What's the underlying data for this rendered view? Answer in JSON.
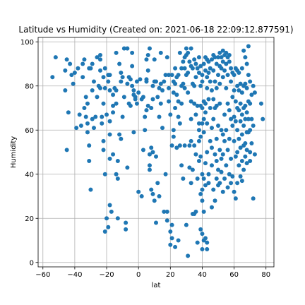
{
  "chart_data": {
    "type": "scatter",
    "title": "Latitude vs Humidity (Created on: 2021-06-18 22:09:12.877591)",
    "xlabel": "lat",
    "ylabel": "Humidity",
    "xlim": [
      -63,
      85
    ],
    "ylim": [
      -2,
      102
    ],
    "xticks": [
      -60,
      -40,
      -20,
      0,
      20,
      40,
      60,
      80
    ],
    "yticks": [
      0,
      20,
      40,
      60,
      80,
      100
    ],
    "grid": true,
    "marker_color": "#1f77b4",
    "points": [
      [
        -54,
        84
      ],
      [
        -52,
        93
      ],
      [
        -46,
        78
      ],
      [
        -46,
        87
      ],
      [
        -45,
        51
      ],
      [
        -45,
        92
      ],
      [
        -44,
        68
      ],
      [
        -43,
        90
      ],
      [
        -42,
        85
      ],
      [
        -41,
        81
      ],
      [
        -40,
        86
      ],
      [
        -39,
        61
      ],
      [
        -38,
        88
      ],
      [
        -37,
        67
      ],
      [
        -36,
        62
      ],
      [
        -35,
        84
      ],
      [
        -35,
        90
      ],
      [
        -34,
        70
      ],
      [
        -34,
        92
      ],
      [
        -33,
        75
      ],
      [
        -33,
        66
      ],
      [
        -32,
        72
      ],
      [
        -32,
        59
      ],
      [
        -32,
        63
      ],
      [
        -31,
        88
      ],
      [
        -31,
        53
      ],
      [
        -31,
        46
      ],
      [
        -30,
        33
      ],
      [
        -30,
        88
      ],
      [
        -29,
        90
      ],
      [
        -29,
        78
      ],
      [
        -29,
        65
      ],
      [
        -28,
        82
      ],
      [
        -28,
        61
      ],
      [
        -27,
        66
      ],
      [
        -26,
        93
      ],
      [
        -26,
        75
      ],
      [
        -25,
        80
      ],
      [
        -24,
        94
      ],
      [
        -24,
        92
      ],
      [
        -24,
        87
      ],
      [
        -24,
        79
      ],
      [
        -23,
        63
      ],
      [
        -23,
        66
      ],
      [
        -22,
        84
      ],
      [
        -22,
        72
      ],
      [
        -22,
        55
      ],
      [
        -22,
        51
      ],
      [
        -21,
        79
      ],
      [
        -21,
        88
      ],
      [
        -21,
        40
      ],
      [
        -21,
        14
      ],
      [
        -20,
        67
      ],
      [
        -20,
        20
      ],
      [
        -19,
        85
      ],
      [
        -19,
        82
      ],
      [
        -19,
        16
      ],
      [
        -18,
        85
      ],
      [
        -18,
        78
      ],
      [
        -18,
        64
      ],
      [
        -18,
        58
      ],
      [
        -18,
        47
      ],
      [
        -18,
        26
      ],
      [
        -17,
        23
      ],
      [
        -16,
        76
      ],
      [
        -16,
        71
      ],
      [
        -16,
        68
      ],
      [
        -16,
        49
      ],
      [
        -15,
        79
      ],
      [
        -14,
        95
      ],
      [
        -14,
        78
      ],
      [
        -14,
        72
      ],
      [
        -14,
        40
      ],
      [
        -13,
        46
      ],
      [
        -13,
        38
      ],
      [
        -13,
        20
      ],
      [
        -12,
        90
      ],
      [
        -12,
        58
      ],
      [
        -11,
        86
      ],
      [
        -11,
        82
      ],
      [
        -11,
        56
      ],
      [
        -10,
        84
      ],
      [
        -10,
        66
      ],
      [
        -9,
        97
      ],
      [
        -9,
        75
      ],
      [
        -8,
        18
      ],
      [
        -8,
        15
      ],
      [
        -7,
        97
      ],
      [
        -7,
        43
      ],
      [
        -7,
        81
      ],
      [
        -6,
        84
      ],
      [
        -6,
        72
      ],
      [
        -5,
        83
      ],
      [
        -5,
        71
      ],
      [
        -4,
        95
      ],
      [
        -4,
        89
      ],
      [
        -4,
        80
      ],
      [
        -3,
        78
      ],
      [
        -3,
        76
      ],
      [
        -3,
        59
      ],
      [
        -2,
        75
      ],
      [
        -2,
        74
      ],
      [
        -1,
        82
      ],
      [
        -1,
        72
      ],
      [
        0,
        32
      ],
      [
        0,
        77
      ],
      [
        1,
        83
      ],
      [
        2,
        30
      ],
      [
        2,
        74
      ],
      [
        3,
        75
      ],
      [
        3,
        51
      ],
      [
        4,
        60
      ],
      [
        4,
        66
      ],
      [
        5,
        82
      ],
      [
        5,
        83
      ],
      [
        5,
        69
      ],
      [
        5,
        92
      ],
      [
        6,
        94
      ],
      [
        6,
        87
      ],
      [
        6,
        71
      ],
      [
        7,
        97
      ],
      [
        7,
        49
      ],
      [
        7,
        44
      ],
      [
        7,
        42
      ],
      [
        8,
        33
      ],
      [
        8,
        70
      ],
      [
        8,
        52
      ],
      [
        9,
        80
      ],
      [
        9,
        74
      ],
      [
        9,
        50
      ],
      [
        9,
        31
      ],
      [
        10,
        92
      ],
      [
        10,
        82
      ],
      [
        10,
        28
      ],
      [
        11,
        82
      ],
      [
        11,
        48
      ],
      [
        11,
        18
      ],
      [
        12,
        75
      ],
      [
        12,
        36
      ],
      [
        13,
        79
      ],
      [
        13,
        66
      ],
      [
        13,
        30
      ],
      [
        14,
        95
      ],
      [
        14,
        81
      ],
      [
        14,
        72
      ],
      [
        15,
        78
      ],
      [
        15,
        61
      ],
      [
        16,
        82
      ],
      [
        16,
        23
      ],
      [
        17,
        85
      ],
      [
        17,
        40
      ],
      [
        18,
        23
      ],
      [
        18,
        19
      ],
      [
        18,
        93
      ],
      [
        19,
        85
      ],
      [
        19,
        73
      ],
      [
        19,
        79
      ],
      [
        20,
        67
      ],
      [
        20,
        14
      ],
      [
        20,
        8
      ],
      [
        21,
        85
      ],
      [
        21,
        53
      ],
      [
        21,
        17
      ],
      [
        21,
        11
      ],
      [
        22,
        82
      ],
      [
        22,
        77
      ],
      [
        22,
        60
      ],
      [
        22,
        57
      ],
      [
        23,
        88
      ],
      [
        23,
        81
      ],
      [
        23,
        70
      ],
      [
        23,
        7
      ],
      [
        24,
        76
      ],
      [
        24,
        84
      ],
      [
        24,
        52
      ],
      [
        25,
        85
      ],
      [
        25,
        73
      ],
      [
        25,
        66
      ],
      [
        25,
        10
      ],
      [
        26,
        95
      ],
      [
        26,
        63
      ],
      [
        26,
        53
      ],
      [
        27,
        88
      ],
      [
        27,
        80
      ],
      [
        27,
        72
      ],
      [
        27,
        44
      ],
      [
        28,
        91
      ],
      [
        28,
        81
      ],
      [
        28,
        38
      ],
      [
        29,
        93
      ],
      [
        29,
        88
      ],
      [
        29,
        79
      ],
      [
        29,
        53
      ],
      [
        30,
        97
      ],
      [
        30,
        94
      ],
      [
        30,
        85
      ],
      [
        30,
        17
      ],
      [
        31,
        95
      ],
      [
        31,
        86
      ],
      [
        31,
        77
      ],
      [
        31,
        3
      ],
      [
        32,
        91
      ],
      [
        32,
        53
      ],
      [
        32,
        43
      ],
      [
        33,
        97
      ],
      [
        33,
        89
      ],
      [
        33,
        73
      ],
      [
        33,
        65
      ],
      [
        33,
        55
      ],
      [
        33,
        36
      ],
      [
        34,
        88
      ],
      [
        34,
        81
      ],
      [
        34,
        42
      ],
      [
        34,
        22
      ],
      [
        35,
        92
      ],
      [
        35,
        80
      ],
      [
        35,
        72
      ],
      [
        35,
        53
      ],
      [
        35,
        22
      ],
      [
        36,
        90
      ],
      [
        36,
        84
      ],
      [
        36,
        67
      ],
      [
        36,
        49
      ],
      [
        36,
        23
      ],
      [
        37,
        88
      ],
      [
        37,
        71
      ],
      [
        37,
        38
      ],
      [
        37,
        9
      ],
      [
        38,
        93
      ],
      [
        38,
        86
      ],
      [
        38,
        60
      ],
      [
        38,
        63
      ],
      [
        38,
        55
      ],
      [
        38,
        46
      ],
      [
        39,
        89
      ],
      [
        39,
        80
      ],
      [
        39,
        71
      ],
      [
        39,
        57
      ],
      [
        39,
        48
      ],
      [
        39,
        31
      ],
      [
        39,
        15
      ],
      [
        40,
        85
      ],
      [
        40,
        82
      ],
      [
        40,
        70
      ],
      [
        40,
        63
      ],
      [
        40,
        40
      ],
      [
        40,
        33
      ],
      [
        40,
        28
      ],
      [
        40,
        13
      ],
      [
        40,
        6
      ],
      [
        41,
        90
      ],
      [
        41,
        73
      ],
      [
        41,
        65
      ],
      [
        41,
        59
      ],
      [
        41,
        38
      ],
      [
        41,
        23
      ],
      [
        41,
        10
      ],
      [
        42,
        93
      ],
      [
        42,
        87
      ],
      [
        42,
        72
      ],
      [
        42,
        68
      ],
      [
        42,
        45
      ],
      [
        42,
        35
      ],
      [
        42,
        11
      ],
      [
        43,
        92
      ],
      [
        43,
        84
      ],
      [
        43,
        79
      ],
      [
        43,
        63
      ],
      [
        43,
        50
      ],
      [
        43,
        9
      ],
      [
        43,
        6
      ],
      [
        44,
        91
      ],
      [
        44,
        86
      ],
      [
        44,
        74
      ],
      [
        44,
        40
      ],
      [
        44,
        36
      ],
      [
        45,
        88
      ],
      [
        45,
        82
      ],
      [
        45,
        70
      ],
      [
        45,
        55
      ],
      [
        46,
        92
      ],
      [
        46,
        78
      ],
      [
        46,
        61
      ],
      [
        46,
        52
      ],
      [
        46,
        44
      ],
      [
        46,
        25
      ],
      [
        47,
        94
      ],
      [
        47,
        87
      ],
      [
        47,
        74
      ],
      [
        47,
        65
      ],
      [
        47,
        33
      ],
      [
        48,
        93
      ],
      [
        48,
        82
      ],
      [
        48,
        70
      ],
      [
        48,
        49
      ],
      [
        48,
        28
      ],
      [
        49,
        90
      ],
      [
        49,
        79
      ],
      [
        49,
        71
      ],
      [
        49,
        56
      ],
      [
        49,
        46
      ],
      [
        49,
        38
      ],
      [
        50,
        93
      ],
      [
        50,
        85
      ],
      [
        50,
        62
      ],
      [
        50,
        42
      ],
      [
        50,
        35
      ],
      [
        51,
        95
      ],
      [
        51,
        89
      ],
      [
        51,
        81
      ],
      [
        51,
        72
      ],
      [
        51,
        51
      ],
      [
        51,
        36
      ],
      [
        52,
        93
      ],
      [
        52,
        88
      ],
      [
        52,
        60
      ],
      [
        52,
        47
      ],
      [
        52,
        41
      ],
      [
        53,
        96
      ],
      [
        53,
        91
      ],
      [
        53,
        84
      ],
      [
        53,
        58
      ],
      [
        53,
        49
      ],
      [
        53,
        32
      ],
      [
        54,
        94
      ],
      [
        54,
        87
      ],
      [
        54,
        67
      ],
      [
        54,
        55
      ],
      [
        54,
        38
      ],
      [
        55,
        95
      ],
      [
        55,
        90
      ],
      [
        55,
        79
      ],
      [
        55,
        60
      ],
      [
        55,
        44
      ],
      [
        56,
        93
      ],
      [
        56,
        85
      ],
      [
        56,
        72
      ],
      [
        56,
        51
      ],
      [
        56,
        34
      ],
      [
        57,
        94
      ],
      [
        57,
        91
      ],
      [
        57,
        69
      ],
      [
        57,
        56
      ],
      [
        57,
        40
      ],
      [
        58,
        88
      ],
      [
        58,
        82
      ],
      [
        58,
        65
      ],
      [
        58,
        47
      ],
      [
        58,
        36
      ],
      [
        59,
        86
      ],
      [
        59,
        75
      ],
      [
        59,
        62
      ],
      [
        59,
        39
      ],
      [
        60,
        85
      ],
      [
        60,
        78
      ],
      [
        60,
        66
      ],
      [
        60,
        55
      ],
      [
        60,
        32
      ],
      [
        61,
        88
      ],
      [
        61,
        73
      ],
      [
        61,
        64
      ],
      [
        61,
        48
      ],
      [
        61,
        29
      ],
      [
        62,
        87
      ],
      [
        62,
        80
      ],
      [
        62,
        70
      ],
      [
        62,
        60
      ],
      [
        62,
        50
      ],
      [
        62,
        36
      ],
      [
        63,
        86
      ],
      [
        63,
        78
      ],
      [
        63,
        69
      ],
      [
        63,
        56
      ],
      [
        63,
        44
      ],
      [
        64,
        81
      ],
      [
        64,
        72
      ],
      [
        64,
        64
      ],
      [
        64,
        52
      ],
      [
        64,
        39
      ],
      [
        65,
        88
      ],
      [
        65,
        77
      ],
      [
        65,
        67
      ],
      [
        65,
        58
      ],
      [
        65,
        46
      ],
      [
        65,
        37
      ],
      [
        66,
        96
      ],
      [
        66,
        80
      ],
      [
        66,
        70
      ],
      [
        66,
        62
      ],
      [
        66,
        53
      ],
      [
        66,
        42
      ],
      [
        67,
        93
      ],
      [
        67,
        81
      ],
      [
        67,
        71
      ],
      [
        67,
        65
      ],
      [
        67,
        54
      ],
      [
        67,
        48
      ],
      [
        68,
        90
      ],
      [
        68,
        79
      ],
      [
        68,
        68
      ],
      [
        68,
        59
      ],
      [
        68,
        51
      ],
      [
        68,
        45
      ],
      [
        69,
        98
      ],
      [
        69,
        85
      ],
      [
        69,
        73
      ],
      [
        69,
        65
      ],
      [
        69,
        59
      ],
      [
        70,
        82
      ],
      [
        70,
        72
      ],
      [
        70,
        60
      ],
      [
        70,
        50
      ],
      [
        70,
        46
      ],
      [
        71,
        76
      ],
      [
        71,
        65
      ],
      [
        71,
        54
      ],
      [
        72,
        80
      ],
      [
        72,
        62
      ],
      [
        72,
        29
      ],
      [
        73,
        77
      ],
      [
        73,
        49
      ],
      [
        77,
        72
      ],
      [
        78,
        65
      ]
    ]
  }
}
